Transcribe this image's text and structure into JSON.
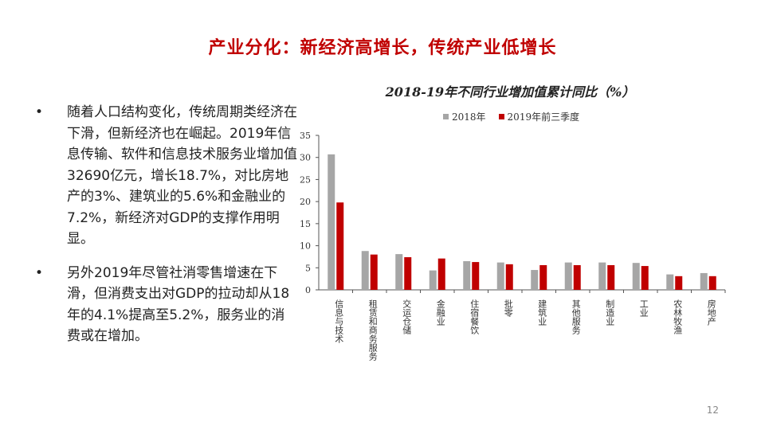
{
  "slide": {
    "title": "产业分化：新经济高增长，传统产业低增长",
    "page_number": "12"
  },
  "bullets": [
    {
      "marker": "•",
      "text": "随着人口结构变化，传统周期类经济在下滑，但新经济也在崛起。2019年信息传输、软件和信息技术服务业增加值32690亿元，增长18.7%，对比房地产的3%、建筑业的5.6%和金融业的7.2%，新经济对GDP的支撑作用明显。"
    },
    {
      "marker": "•",
      "text": "另外2019年尽管社消零售增速在下滑，但消费支出对GDP的拉动却从18年的4.1%提高至5.2%，服务业的消费或在增加。"
    }
  ],
  "chart_data": {
    "type": "bar",
    "title": "2018-19年不同行业增加值累计同比（%）",
    "categories": [
      "信息与技术",
      "租赁和商务服务",
      "交运仓储",
      "金融业",
      "住宿餐饮",
      "批零",
      "建筑业",
      "其他服务",
      "制造业",
      "工业",
      "农林牧渔",
      "房地产"
    ],
    "series": [
      {
        "name": "2018年",
        "color": "#a6a6a6",
        "values": [
          30.7,
          8.8,
          8.1,
          4.4,
          6.5,
          6.2,
          4.5,
          6.2,
          6.2,
          6.1,
          3.5,
          3.8
        ]
      },
      {
        "name": "2019年前三季度",
        "color": "#c00000",
        "values": [
          19.8,
          8.0,
          7.4,
          7.1,
          6.3,
          5.8,
          5.6,
          5.6,
          5.6,
          5.4,
          3.1,
          3.1
        ]
      }
    ],
    "y_ticks": [
      "0",
      "5",
      "10",
      "15",
      "20",
      "25",
      "30",
      "35"
    ],
    "ylim": [
      0,
      35
    ],
    "legend_position": "top",
    "grid": false
  }
}
